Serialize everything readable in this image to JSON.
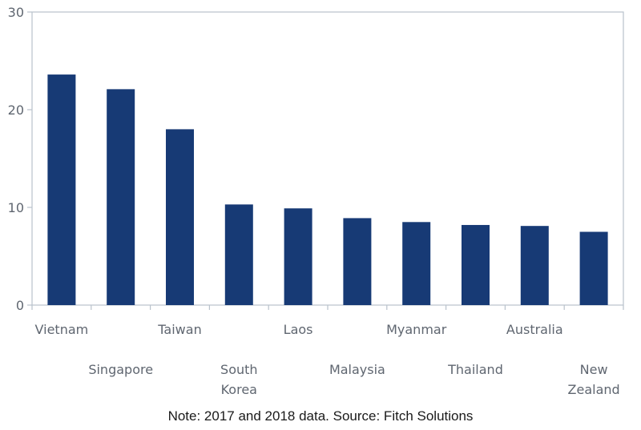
{
  "chart_data": {
    "type": "bar",
    "categories": [
      "Vietnam",
      "Singapore",
      "Taiwan",
      "South Korea",
      "Laos",
      "Malaysia",
      "Myanmar",
      "Thailand",
      "Australia",
      "New Zealand"
    ],
    "category_lines": [
      [
        "Vietnam"
      ],
      [
        "Singapore"
      ],
      [
        "Taiwan"
      ],
      [
        "South",
        "Korea"
      ],
      [
        "Laos"
      ],
      [
        "Malaysia"
      ],
      [
        "Myanmar"
      ],
      [
        "Thailand"
      ],
      [
        "Australia"
      ],
      [
        "New",
        "Zealand"
      ]
    ],
    "values": [
      23.6,
      22.1,
      18.0,
      10.3,
      9.9,
      8.9,
      8.5,
      8.2,
      8.1,
      7.5
    ],
    "ylim": [
      0,
      30
    ],
    "yticks": [
      0,
      10,
      20,
      30
    ],
    "grid": false,
    "bar_color": "#173a75",
    "axis_color": "#b9c2cc",
    "label_color": "#5f6670"
  },
  "note": "Note: 2017 and 2018 data. Source: Fitch Solutions"
}
